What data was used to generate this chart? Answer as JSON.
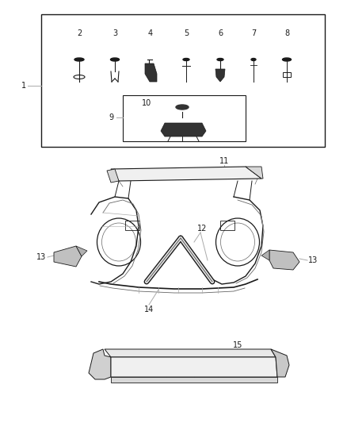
{
  "bg_color": "#ffffff",
  "line_color": "#1a1a1a",
  "gray_color": "#888888",
  "dark_gray": "#333333",
  "mid_gray": "#666666",
  "light_gray": "#aaaaaa",
  "fig_width": 4.38,
  "fig_height": 5.33,
  "dpi": 100
}
